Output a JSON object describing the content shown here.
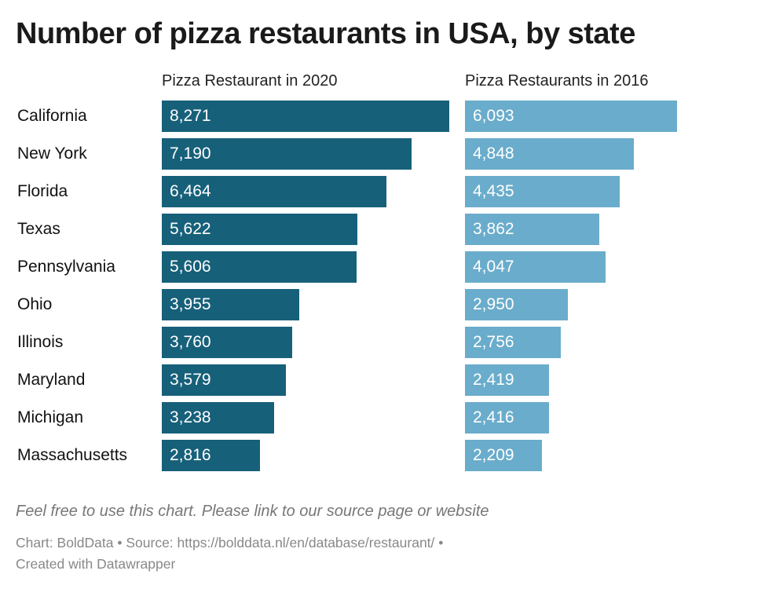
{
  "chart_data": {
    "type": "bar",
    "title": "Number of pizza restaurants in USA, by state",
    "categories": [
      "California",
      "New York",
      "Florida",
      "Texas",
      "Pennsylvania",
      "Ohio",
      "Illinois",
      "Maryland",
      "Michigan",
      "Massachusetts"
    ],
    "series": [
      {
        "name": "Pizza Restaurant in 2020",
        "values": [
          8271,
          7190,
          6464,
          5622,
          5606,
          3955,
          3760,
          3579,
          3238,
          2816
        ],
        "labels": [
          "8,271",
          "7,190",
          "6,464",
          "5,622",
          "5,606",
          "3,955",
          "3,760",
          "3,579",
          "3,238",
          "2,816"
        ],
        "color": "#17607a"
      },
      {
        "name": "Pizza Restaurants in 2016",
        "values": [
          6093,
          4848,
          4435,
          3862,
          4047,
          2950,
          2756,
          2419,
          2416,
          2209
        ],
        "labels": [
          "6,093",
          "4,848",
          "4,435",
          "3,862",
          "4,047",
          "2,950",
          "2,756",
          "2,419",
          "2,416",
          "2,209"
        ],
        "color": "#6aaccb"
      }
    ],
    "orientation": "horizontal",
    "grid": false
  },
  "note": "Feel free to use this chart. Please link to our source page or website",
  "footer": {
    "line1": "Chart: BoldData • Source: https://bolddata.nl/en/database/restaurant/ •",
    "line2": "Created with Datawrapper"
  }
}
